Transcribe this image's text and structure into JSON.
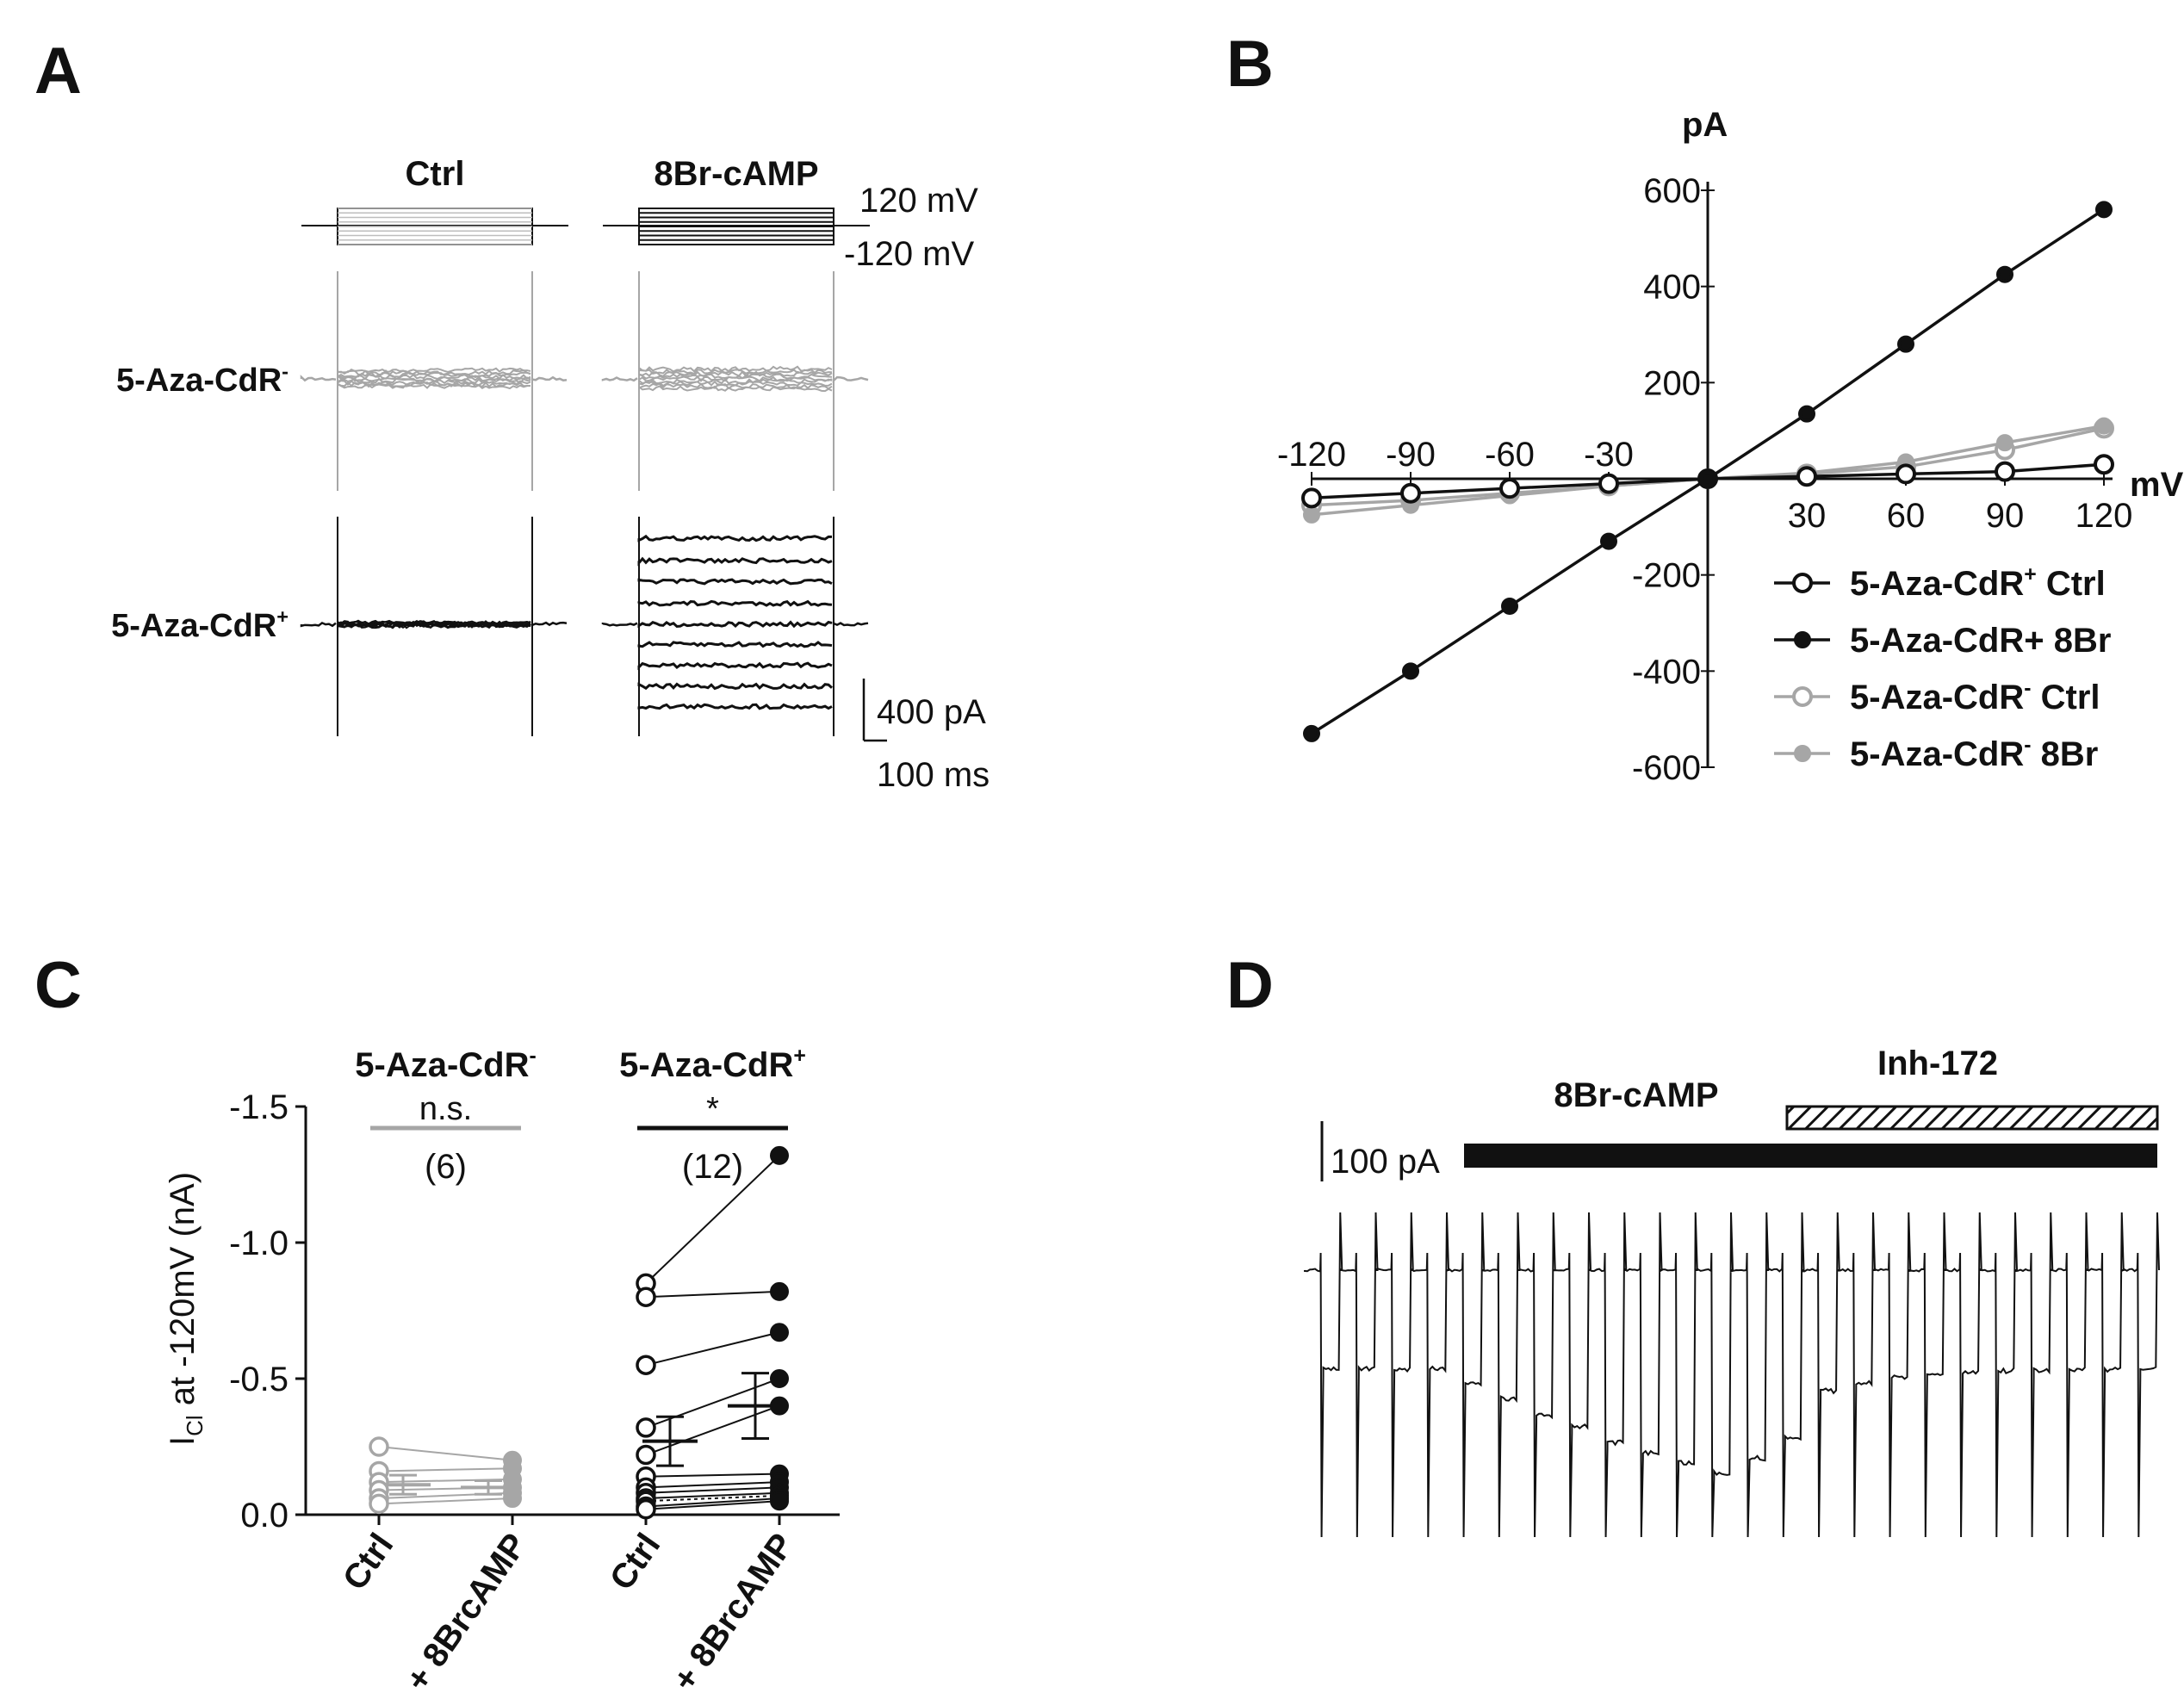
{
  "panel_labels": {
    "a": "A",
    "b": "B",
    "c": "C",
    "d": "D"
  },
  "colors": {
    "black": "#111111",
    "grey": "#a6a6a6",
    "light_grey": "#bdbdbd"
  },
  "chart_data": [
    {
      "id": "A",
      "type": "traces",
      "column_labels": [
        "Ctrl",
        "8Br-cAMP"
      ],
      "row_labels": [
        "5-Aza-CdR",
        "5-Aza-CdR"
      ],
      "row_superscripts": [
        "-",
        "+"
      ],
      "voltage_labels": [
        "120 mV",
        "-120 mV"
      ],
      "scale_bar": {
        "current": "400 pA",
        "time": "100 ms"
      },
      "voltage_steps_mV": [
        -120,
        -90,
        -60,
        -30,
        0,
        30,
        60,
        90,
        120
      ],
      "rows": [
        {
          "name": "5-Aza-CdR-",
          "ctrl_pA": [
            -45,
            -35,
            -25,
            -12,
            0,
            12,
            25,
            38,
            52
          ],
          "cAMP_pA": [
            -60,
            -45,
            -30,
            -15,
            0,
            15,
            30,
            45,
            60
          ]
        },
        {
          "name": "5-Aza-CdR+",
          "ctrl_pA": [
            -10,
            -8,
            -6,
            -3,
            0,
            3,
            5,
            8,
            10
          ],
          "cAMP_pA": [
            -530,
            -400,
            -265,
            -130,
            0,
            135,
            275,
            410,
            555
          ]
        }
      ]
    },
    {
      "id": "B",
      "type": "line",
      "xlabel": "mV",
      "ylabel": "pA",
      "xlim": [
        -120,
        120
      ],
      "ylim": [
        -600,
        600
      ],
      "xticks": [
        -120,
        -90,
        -60,
        -30,
        30,
        60,
        90,
        120
      ],
      "yticks": [
        600,
        400,
        200,
        -200,
        -400,
        -600
      ],
      "x": [
        -120,
        -90,
        -60,
        -30,
        0,
        30,
        60,
        90,
        120
      ],
      "legend_title_parts": [
        {
          "text": "5-Aza-CdR",
          "sup": "+",
          "suffix": " Ctrl"
        },
        {
          "text": "5-Aza-CdR+ 8Br",
          "sup": "",
          "suffix": ""
        },
        {
          "text": "5-Aza-CdR",
          "sup": "-",
          "suffix": " Ctrl"
        },
        {
          "text": "5-Aza-CdR",
          "sup": "-",
          "suffix": " 8Br"
        }
      ],
      "series": [
        {
          "name": "5-Aza-CdR+ Ctrl",
          "color": "#111111",
          "marker": "open",
          "values": [
            -40,
            -30,
            -20,
            -10,
            0,
            5,
            10,
            15,
            30
          ]
        },
        {
          "name": "5-Aza-CdR+ 8Br",
          "color": "#111111",
          "marker": "filled",
          "values": [
            -530,
            -400,
            -265,
            -130,
            0,
            135,
            280,
            425,
            560
          ]
        },
        {
          "name": "5-Aza-CdR- Ctrl",
          "color": "#a6a6a6",
          "marker": "open",
          "values": [
            -55,
            -45,
            -30,
            -15,
            0,
            10,
            25,
            60,
            105
          ]
        },
        {
          "name": "5-Aza-CdR- 8Br",
          "color": "#a6a6a6",
          "marker": "filled",
          "values": [
            -75,
            -55,
            -35,
            -15,
            0,
            12,
            35,
            75,
            110
          ]
        }
      ]
    },
    {
      "id": "C",
      "type": "scatter",
      "ylabel_main": "I",
      "ylabel_sub": "Cl",
      "ylabel_rest": " at -120mV (nA)",
      "ylim": [
        0.0,
        -1.5
      ],
      "yticks": [
        "-1.5",
        "-1.0",
        "-0.5",
        "0.0"
      ],
      "ytick_values": [
        -1.5,
        -1.0,
        -0.5,
        0.0
      ],
      "categories": [
        "Ctrl",
        "+ 8BrcAMP",
        "Ctrl",
        "+ 8BrcAMP"
      ],
      "groups": [
        {
          "title": "5-Aza-CdR",
          "sup": "-",
          "sig": "n.s.",
          "n": "(6)",
          "color": "#a6a6a6",
          "ctrl": [
            -0.25,
            -0.16,
            -0.12,
            -0.09,
            -0.06,
            -0.04
          ],
          "treated": [
            -0.2,
            -0.17,
            -0.13,
            -0.1,
            -0.08,
            -0.06
          ],
          "means": [
            -0.11,
            -0.1
          ],
          "sem": [
            0.035,
            0.025
          ]
        },
        {
          "title": "5-Aza-CdR",
          "sup": "+",
          "sig": "*",
          "n": "(12)",
          "color": "#111111",
          "ctrl": [
            -0.85,
            -0.8,
            -0.55,
            -0.32,
            -0.22,
            -0.14,
            -0.1,
            -0.08,
            -0.06,
            -0.05,
            -0.03,
            -0.02
          ],
          "treated": [
            -1.32,
            -0.82,
            -0.67,
            -0.5,
            -0.4,
            -0.15,
            -0.12,
            -0.1,
            -0.08,
            -0.07,
            -0.06,
            -0.05
          ],
          "means": [
            -0.27,
            -0.4
          ],
          "sem": [
            0.09,
            0.12
          ]
        }
      ]
    },
    {
      "id": "D",
      "type": "trace",
      "drug_labels": [
        "8Br-cAMP",
        "Inh-172"
      ],
      "scale_bar": "100 pA",
      "pulses": 24,
      "baseline_offsets_pA": [
        0,
        0,
        0,
        0,
        30,
        55,
        90,
        110,
        140,
        160,
        180,
        200,
        170,
        130,
        40,
        25,
        15,
        8,
        5,
        3,
        2,
        1,
        0,
        0
      ]
    }
  ]
}
